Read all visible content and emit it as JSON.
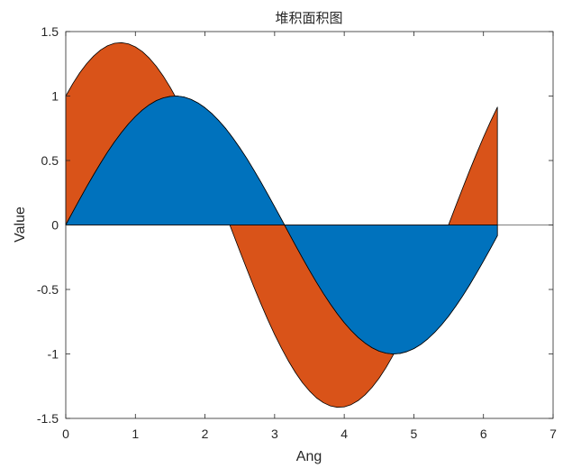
{
  "chart_data": {
    "type": "area",
    "stacked": true,
    "title": "堆积面积图",
    "xlabel": "Ang",
    "ylabel": "Value",
    "xlim": [
      0,
      7
    ],
    "ylim": [
      -1.5,
      1.5
    ],
    "x_ticks": [
      0,
      1,
      2,
      3,
      4,
      5,
      6,
      7
    ],
    "x_tick_labels": [
      "0",
      "1",
      "2",
      "3",
      "4",
      "5",
      "6",
      "7"
    ],
    "y_ticks": [
      -1.5,
      -1,
      -0.5,
      0,
      0.5,
      1,
      1.5
    ],
    "y_tick_labels": [
      "-1.5",
      "-1",
      "-0.5",
      "0",
      "0.5",
      "1",
      "1.5"
    ],
    "x": [
      0,
      0.1,
      0.2,
      0.3,
      0.4,
      0.5,
      0.6,
      0.7,
      0.8,
      0.9,
      1.0,
      1.1,
      1.2,
      1.3,
      1.4,
      1.5,
      1.6,
      1.7,
      1.8,
      1.9,
      2.0,
      2.1,
      2.2,
      2.3,
      2.4,
      2.5,
      2.6,
      2.7,
      2.8,
      2.9,
      3.0,
      3.1,
      3.2,
      3.3,
      3.4,
      3.5,
      3.6,
      3.7,
      3.8,
      3.9,
      4.0,
      4.1,
      4.2,
      4.3,
      4.4,
      4.5,
      4.6,
      4.7,
      4.8,
      4.9,
      5.0,
      5.1,
      5.2,
      5.3,
      5.4,
      5.5,
      5.6,
      5.7,
      5.8,
      5.9,
      6.0,
      6.1,
      6.2
    ],
    "series": [
      {
        "color": "#0072BD",
        "values": [
          0,
          0.1,
          0.199,
          0.296,
          0.389,
          0.479,
          0.565,
          0.644,
          0.717,
          0.783,
          0.841,
          0.891,
          0.932,
          0.964,
          0.985,
          0.997,
          1.0,
          0.992,
          0.974,
          0.946,
          0.909,
          0.863,
          0.808,
          0.746,
          0.675,
          0.598,
          0.516,
          0.427,
          0.335,
          0.239,
          0.141,
          0.042,
          -0.058,
          -0.158,
          -0.256,
          -0.351,
          -0.443,
          -0.53,
          -0.612,
          -0.688,
          -0.757,
          -0.818,
          -0.872,
          -0.916,
          -0.952,
          -0.978,
          -0.994,
          -1.0,
          -0.996,
          -0.982,
          -0.959,
          -0.926,
          -0.883,
          -0.832,
          -0.773,
          -0.706,
          -0.631,
          -0.551,
          -0.465,
          -0.374,
          -0.279,
          -0.182,
          -0.083
        ]
      },
      {
        "color": "#D95319",
        "values": [
          1.0,
          0.995,
          0.98,
          0.955,
          0.921,
          0.878,
          0.825,
          0.765,
          0.697,
          0.622,
          0.54,
          0.454,
          0.362,
          0.267,
          0.17,
          0.071,
          -0.029,
          -0.129,
          -0.227,
          -0.323,
          -0.416,
          -0.505,
          -0.589,
          -0.666,
          -0.737,
          -0.801,
          -0.857,
          -0.904,
          -0.942,
          -0.971,
          -0.99,
          -0.999,
          -0.998,
          -0.987,
          -0.967,
          -0.936,
          -0.897,
          -0.848,
          -0.791,
          -0.726,
          -0.654,
          -0.575,
          -0.49,
          -0.401,
          -0.307,
          -0.211,
          -0.112,
          -0.012,
          0.087,
          0.187,
          0.284,
          0.378,
          0.469,
          0.554,
          0.635,
          0.709,
          0.776,
          0.835,
          0.886,
          0.927,
          0.96,
          0.983,
          0.997
        ]
      }
    ],
    "grid": false,
    "box": true
  }
}
